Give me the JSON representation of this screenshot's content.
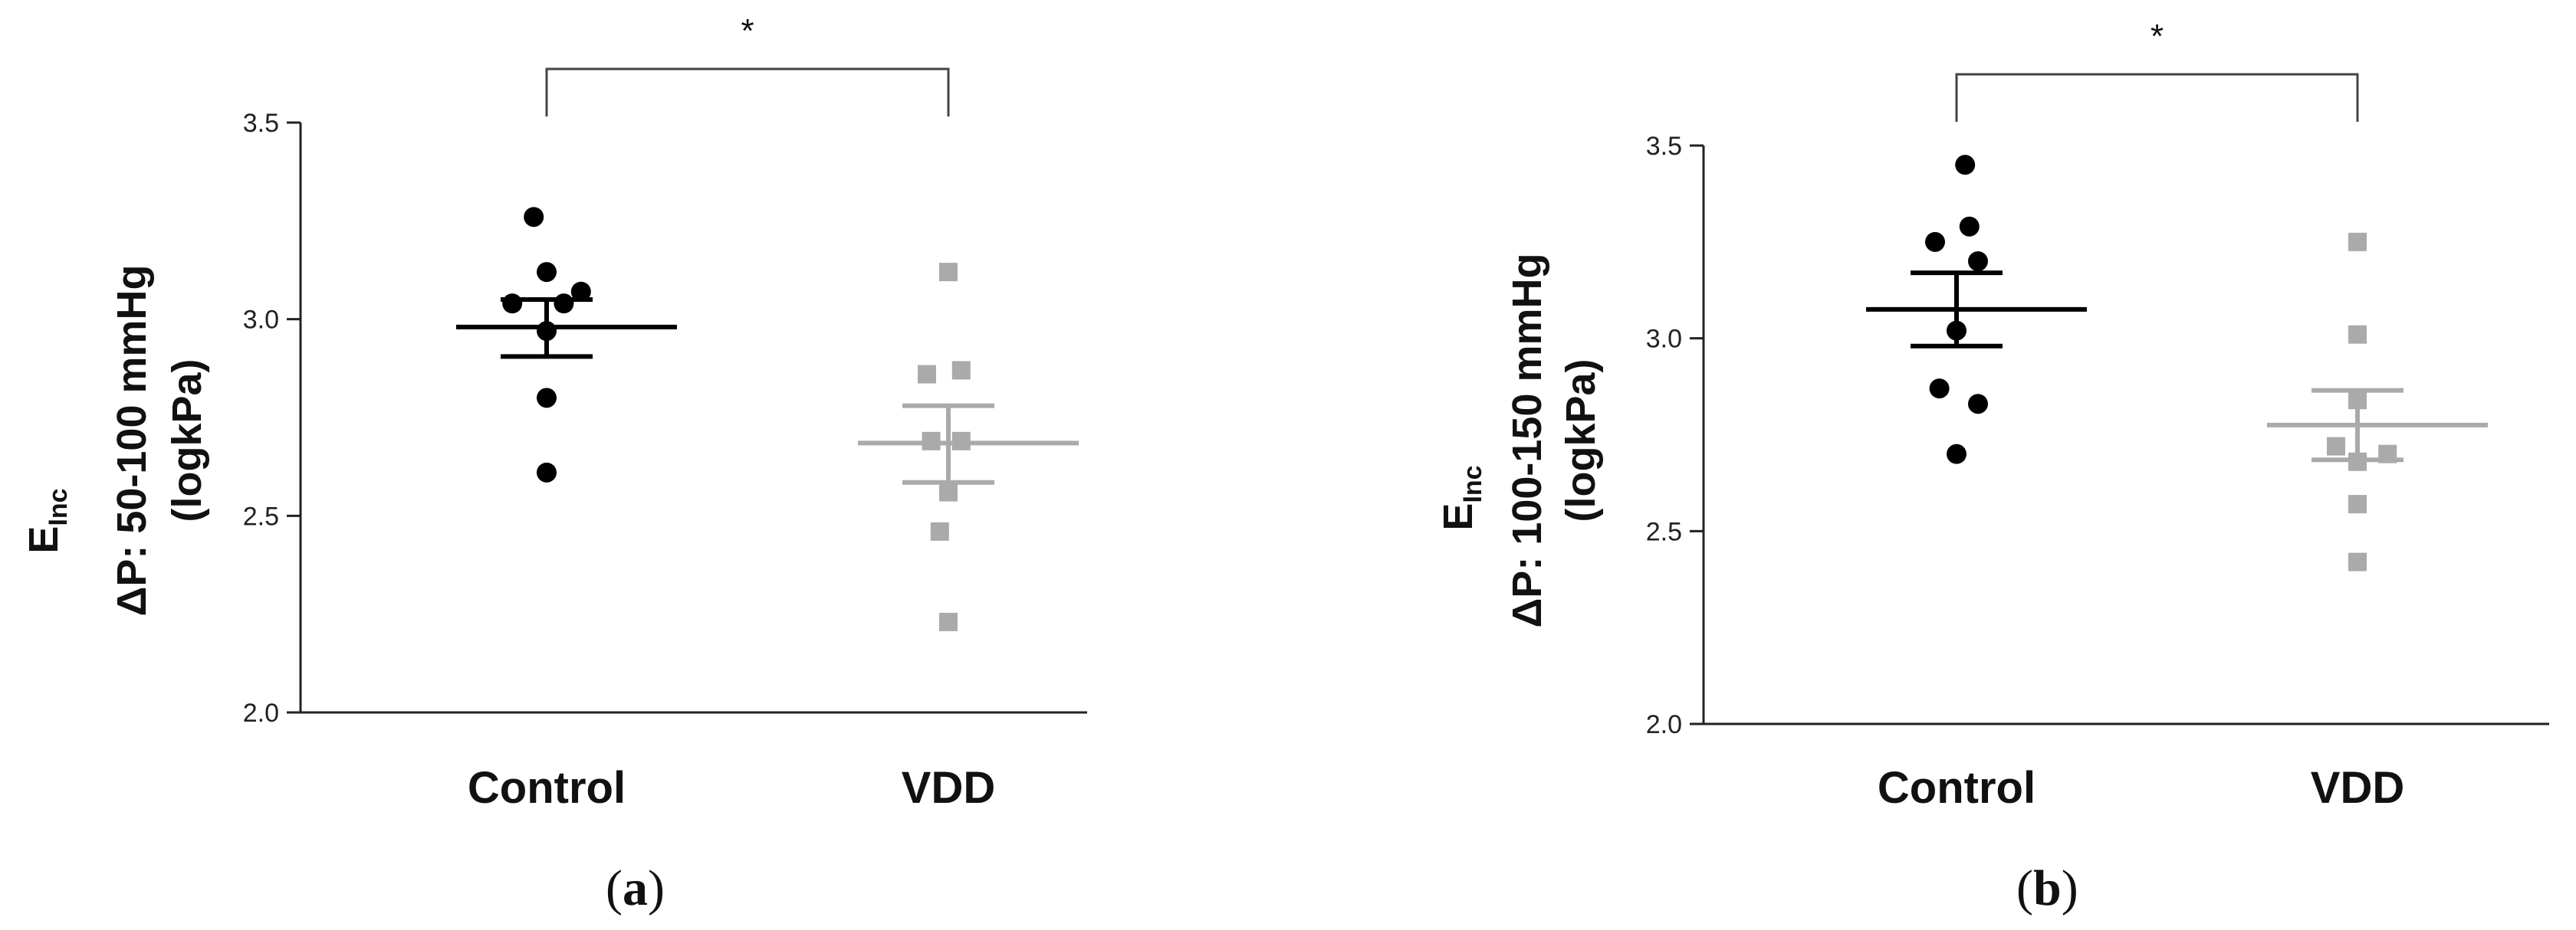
{
  "chart_data": [
    {
      "type": "scatter",
      "panel_label": "(a)",
      "panel_letter": "a",
      "ylabel": {
        "main": "E",
        "subscript": "Inc",
        "line2": "ΔP: 50-100 mmHg",
        "line3": "(logkPa)"
      },
      "categories": [
        "Control",
        "VDD"
      ],
      "ylim": [
        2.0,
        3.5
      ],
      "yticks": [
        "2.0",
        "2.5",
        "3.0",
        "3.5"
      ],
      "significance": "*",
      "colors": {
        "Control": "#000000",
        "VDD": "#aaaaaa"
      },
      "series": [
        {
          "name": "Control",
          "marker": "circle",
          "points": [
            [
              -0.03,
              3.26
            ],
            [
              0.0,
              3.12
            ],
            [
              0.08,
              3.07
            ],
            [
              -0.08,
              3.04
            ],
            [
              0.04,
              3.04
            ],
            [
              0.0,
              2.97
            ],
            [
              0.0,
              2.8
            ],
            [
              0.0,
              2.61
            ]
          ],
          "mean": 2.98,
          "sem_low": 2.905,
          "sem_high": 3.05
        },
        {
          "name": "VDD",
          "marker": "square",
          "points": [
            [
              0.0,
              3.12
            ],
            [
              -0.05,
              2.86
            ],
            [
              0.03,
              2.87
            ],
            [
              -0.04,
              2.69
            ],
            [
              0.03,
              2.69
            ],
            [
              0.0,
              2.56
            ],
            [
              -0.02,
              2.46
            ],
            [
              0.0,
              2.23
            ]
          ],
          "mean": 2.685,
          "sem_low": 2.585,
          "sem_high": 2.78
        }
      ]
    },
    {
      "type": "scatter",
      "panel_label": "(b)",
      "panel_letter": "b",
      "ylabel": {
        "main": "E",
        "subscript": "Inc",
        "line2": "ΔP: 100-150 mmHg",
        "line3": "(logkPa)"
      },
      "categories": [
        "Control",
        "VDD"
      ],
      "ylim": [
        2.0,
        3.5
      ],
      "yticks": [
        "2.0",
        "2.5",
        "3.0",
        "3.5"
      ],
      "significance": "*",
      "colors": {
        "Control": "#000000",
        "VDD": "#aaaaaa"
      },
      "series": [
        {
          "name": "Control",
          "marker": "circle",
          "points": [
            [
              0.02,
              3.45
            ],
            [
              0.03,
              3.29
            ],
            [
              -0.05,
              3.25
            ],
            [
              0.05,
              3.2
            ],
            [
              0.0,
              3.02
            ],
            [
              -0.04,
              2.87
            ],
            [
              0.05,
              2.83
            ],
            [
              0.0,
              2.7
            ]
          ],
          "mean": 3.075,
          "sem_low": 2.98,
          "sem_high": 3.17
        },
        {
          "name": "VDD",
          "marker": "square",
          "points": [
            [
              0.0,
              3.25
            ],
            [
              0.0,
              3.01
            ],
            [
              0.0,
              2.84
            ],
            [
              -0.05,
              2.72
            ],
            [
              0.07,
              2.7
            ],
            [
              0.0,
              2.68
            ],
            [
              0.0,
              2.57
            ],
            [
              0.0,
              2.42
            ]
          ],
          "mean": 2.775,
          "sem_low": 2.685,
          "sem_high": 2.865
        }
      ]
    }
  ]
}
